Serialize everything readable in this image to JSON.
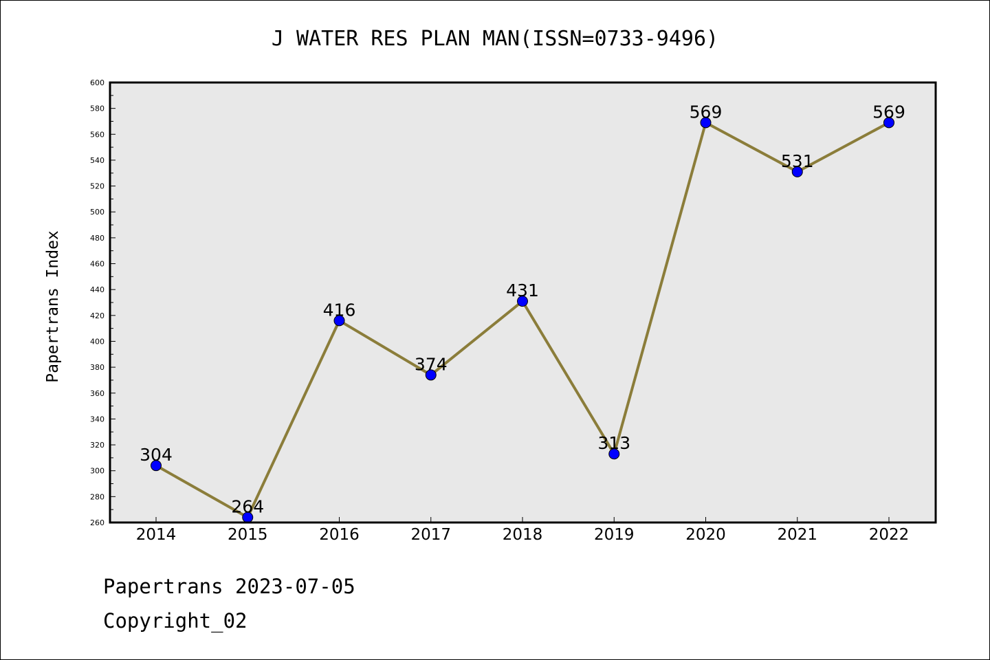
{
  "footer": {
    "line1": "Papertrans 2023-07-05",
    "line2": "Copyright_02"
  },
  "chart_data": {
    "type": "line",
    "title": "J WATER RES PLAN MAN(ISSN=0733-9496)",
    "xlabel": "",
    "ylabel": "Papertrans Index",
    "categories": [
      "2014",
      "2015",
      "2016",
      "2017",
      "2018",
      "2019",
      "2020",
      "2021",
      "2022"
    ],
    "values": [
      304,
      264,
      416,
      374,
      431,
      313,
      569,
      531,
      569
    ],
    "data_labels": [
      "304",
      "264",
      "416",
      "374",
      "431",
      "313",
      "569",
      "531",
      "569"
    ],
    "ylim": [
      260,
      600
    ],
    "y_ticks": [
      "260",
      "280",
      "300",
      "320",
      "340",
      "360",
      "380",
      "400",
      "420",
      "440",
      "460",
      "480",
      "500",
      "520",
      "540",
      "560",
      "580",
      "600"
    ],
    "grid": false,
    "legend": "none",
    "colors": {
      "line": "#8b7d3a",
      "marker": "#0000ff",
      "plot_background": "#e8e8e8"
    }
  }
}
